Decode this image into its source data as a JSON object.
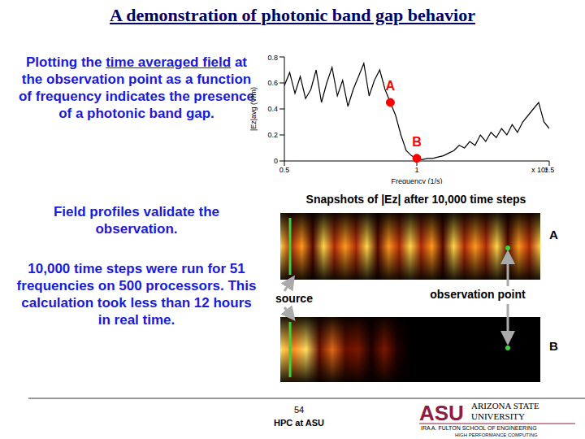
{
  "chart_data": {
    "type": "line",
    "xlabel": "Frequency (1/s)",
    "ylabel": "|Ez|avg (V/m)",
    "x_multiplier": "x 10⁴",
    "x": [
      0.5,
      0.52,
      0.54,
      0.56,
      0.58,
      0.6,
      0.62,
      0.64,
      0.66,
      0.68,
      0.7,
      0.72,
      0.74,
      0.76,
      0.78,
      0.8,
      0.82,
      0.84,
      0.86,
      0.88,
      0.9,
      0.92,
      0.94,
      0.96,
      0.98,
      1.0,
      1.02,
      1.04,
      1.06,
      1.08,
      1.1,
      1.12,
      1.14,
      1.16,
      1.18,
      1.2,
      1.22,
      1.24,
      1.26,
      1.28,
      1.3,
      1.32,
      1.34,
      1.36,
      1.38,
      1.4,
      1.42,
      1.44,
      1.46,
      1.48,
      1.5
    ],
    "values": [
      0.58,
      0.68,
      0.52,
      0.65,
      0.48,
      0.55,
      0.7,
      0.45,
      0.6,
      0.72,
      0.5,
      0.62,
      0.42,
      0.55,
      0.65,
      0.75,
      0.5,
      0.62,
      0.7,
      0.55,
      0.45,
      0.35,
      0.2,
      0.08,
      0.04,
      0.02,
      0.01,
      0.02,
      0.02,
      0.03,
      0.04,
      0.06,
      0.08,
      0.12,
      0.1,
      0.15,
      0.12,
      0.2,
      0.15,
      0.22,
      0.18,
      0.25,
      0.2,
      0.28,
      0.22,
      0.3,
      0.35,
      0.4,
      0.45,
      0.3,
      0.25
    ],
    "color": "#000000",
    "marker": "none",
    "xlim": [
      0.5,
      1.5
    ],
    "xticks": [
      0.5,
      1,
      1.5
    ],
    "ylim": [
      0,
      0.8
    ],
    "yticks": [
      0,
      0.2,
      0.4,
      0.6,
      0.8
    ],
    "grid": false,
    "annotations": [
      {
        "label": "A",
        "x": 0.9,
        "y": 0.45,
        "color": "#ff0000"
      },
      {
        "label": "B",
        "x": 1.0,
        "y": 0.02,
        "color": "#ff0000"
      }
    ]
  },
  "slide": {
    "title": "A demonstration of photonic band gap behavior",
    "paragraphs": [
      [
        {
          "text": "Plotting the "
        },
        {
          "text": "time averaged field",
          "underline": true
        },
        {
          "text": " at the observation point as a function of frequency indicates the presence of a photonic band gap."
        }
      ],
      [
        {
          "text": "Field profiles validate the observation."
        }
      ],
      [
        {
          "text": "10,000 time steps were run for 51 frequencies on 500 processors. This calculation took less than 12 hours in real time."
        }
      ]
    ],
    "snapshots": {
      "title": "Snapshots of |Ez| after 10,000 time steps",
      "labels": [
        "A",
        "B"
      ],
      "source": "source",
      "observation": "observation point"
    },
    "footer": {
      "page": "54",
      "text": "HPC at ASU",
      "logo": {
        "mark": "ASU",
        "name": [
          "ARIZONA STATE",
          "UNIVERSITY"
        ],
        "school": "IRA A. FULTON SCHOOL OF ENGINEERING",
        "unit": "HIGH PERFORMANCE COMPUTING"
      }
    }
  }
}
